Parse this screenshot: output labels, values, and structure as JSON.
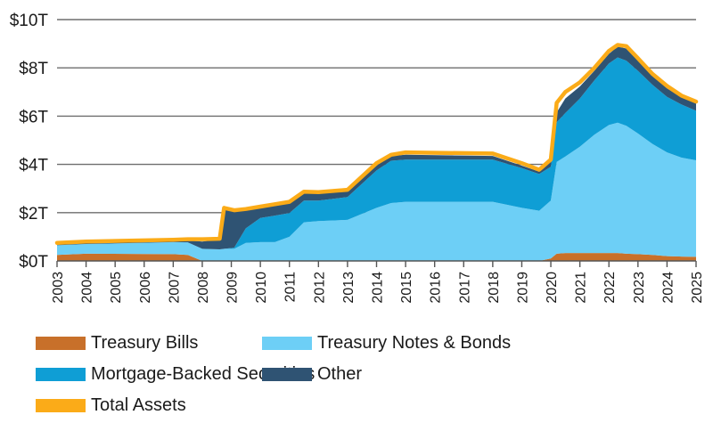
{
  "chart_data": {
    "type": "area",
    "stacked": true,
    "title": "",
    "xlabel": "",
    "ylabel": "",
    "xlim": [
      2003,
      2025
    ],
    "ylim": [
      0,
      10
    ],
    "grid": true,
    "legend_position": "bottom",
    "y_ticks": [
      {
        "value": 0,
        "label": "$0T"
      },
      {
        "value": 2,
        "label": "$2T"
      },
      {
        "value": 4,
        "label": "$4T"
      },
      {
        "value": 6,
        "label": "$6T"
      },
      {
        "value": 8,
        "label": "$8T"
      },
      {
        "value": 10,
        "label": "$10T"
      }
    ],
    "x_ticks": [
      "2003",
      "2004",
      "2005",
      "2006",
      "2007",
      "2008",
      "2009",
      "2010",
      "2011",
      "2012",
      "2013",
      "2014",
      "2015",
      "2016",
      "2017",
      "2018",
      "2019",
      "2020",
      "2021",
      "2022",
      "2023",
      "2024",
      "2025"
    ],
    "x": [
      2003.0,
      2004.0,
      2007.0,
      2007.5,
      2008.0,
      2008.6,
      2008.75,
      2009.1,
      2009.5,
      2010.0,
      2010.5,
      2011.0,
      2011.5,
      2012.0,
      2013.0,
      2014.0,
      2014.5,
      2015.0,
      2018.0,
      2019.0,
      2019.6,
      2020.0,
      2020.2,
      2020.5,
      2021.0,
      2021.5,
      2022.0,
      2022.3,
      2022.6,
      2023.0,
      2023.5,
      2024.0,
      2024.5,
      2025.0
    ],
    "series": [
      {
        "name": "Treasury Bills",
        "color": "#C8702A",
        "values": [
          0.25,
          0.3,
          0.28,
          0.25,
          0.0,
          0.0,
          0.02,
          0.02,
          0.0,
          0.0,
          0.0,
          0.0,
          0.0,
          0.0,
          0.0,
          0.0,
          0.0,
          0.0,
          0.0,
          0.0,
          0.0,
          0.1,
          0.3,
          0.33,
          0.33,
          0.33,
          0.33,
          0.33,
          0.3,
          0.28,
          0.25,
          0.2,
          0.18,
          0.17
        ]
      },
      {
        "name": "Treasury Notes & Bonds",
        "color": "#6DCFF6",
        "values": [
          0.4,
          0.4,
          0.5,
          0.52,
          0.5,
          0.48,
          0.48,
          0.48,
          0.75,
          0.78,
          0.78,
          1.0,
          1.6,
          1.65,
          1.7,
          2.2,
          2.4,
          2.45,
          2.45,
          2.2,
          2.08,
          2.4,
          3.8,
          4.0,
          4.4,
          4.9,
          5.3,
          5.4,
          5.3,
          5.0,
          4.6,
          4.3,
          4.1,
          4.0
        ]
      },
      {
        "name": "Mortgage-Backed Securities",
        "color": "#0F9ED5",
        "values": [
          0.0,
          0.0,
          0.0,
          0.0,
          0.0,
          0.0,
          0.0,
          0.05,
          0.6,
          1.0,
          1.1,
          0.98,
          0.9,
          0.85,
          0.95,
          1.55,
          1.75,
          1.75,
          1.75,
          1.65,
          1.52,
          1.4,
          1.65,
          1.8,
          2.0,
          2.25,
          2.55,
          2.7,
          2.7,
          2.6,
          2.45,
          2.3,
          2.2,
          2.05
        ]
      },
      {
        "name": "Other",
        "color": "#2F5373",
        "values": [
          0.05,
          0.05,
          0.07,
          0.08,
          0.3,
          0.42,
          1.65,
          1.5,
          0.75,
          0.42,
          0.4,
          0.4,
          0.33,
          0.28,
          0.25,
          0.2,
          0.2,
          0.2,
          0.15,
          0.1,
          0.1,
          0.2,
          0.4,
          0.6,
          0.5,
          0.4,
          0.4,
          0.45,
          0.5,
          0.45,
          0.4,
          0.35,
          0.3,
          0.3
        ]
      },
      {
        "name": "Total Assets",
        "color": "#FBAB18",
        "kind": "line",
        "values": [
          0.75,
          0.8,
          0.88,
          0.9,
          0.9,
          0.92,
          2.2,
          2.1,
          2.15,
          2.25,
          2.35,
          2.45,
          2.87,
          2.85,
          2.95,
          4.05,
          4.4,
          4.5,
          4.45,
          4.05,
          3.78,
          4.2,
          6.55,
          7.0,
          7.4,
          8.0,
          8.7,
          8.95,
          8.9,
          8.4,
          7.75,
          7.25,
          6.85,
          6.6
        ]
      }
    ]
  },
  "legend": [
    {
      "label": "Treasury Bills",
      "color": "#C8702A"
    },
    {
      "label": "Treasury Notes & Bonds",
      "color": "#6DCFF6"
    },
    {
      "label": "Mortgage-Backed Securities",
      "color": "#0F9ED5"
    },
    {
      "label": "Other",
      "color": "#2F5373"
    },
    {
      "label": "Total Assets",
      "color": "#FBAB18"
    }
  ],
  "colors": {
    "grid": "#6E6E6E",
    "axis": "#555555",
    "text": "#1a1a1a"
  }
}
